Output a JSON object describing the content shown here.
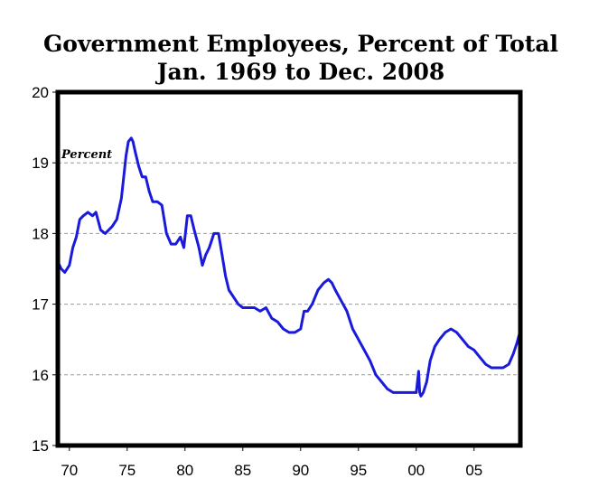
{
  "chart_data": {
    "type": "line",
    "title": "Government Employees, Percent of Total",
    "subtitle": "Jan. 1969 to Dec. 2008",
    "ylabel": "Percent",
    "xlabel": "",
    "xlim": [
      1969,
      2009
    ],
    "ylim": [
      15,
      20
    ],
    "y_ticks": [
      15,
      16,
      17,
      18,
      19,
      20
    ],
    "y_tick_labels": [
      "15",
      "16",
      "17",
      "18",
      "19",
      "20"
    ],
    "x_ticks": [
      1970,
      1975,
      1980,
      1985,
      1990,
      1995,
      2000,
      2005
    ],
    "x_tick_labels": [
      "70",
      "75",
      "80",
      "85",
      "90",
      "95",
      "00",
      "05"
    ],
    "grid": "horizontal dashed",
    "legend": "none",
    "colors": {
      "line": "#1a1adb",
      "grid": "#999999",
      "frame": "#000000",
      "background": "#ffffff"
    },
    "series": [
      {
        "x": [
          1969.0,
          1969.3,
          1969.6,
          1970.0,
          1970.3,
          1970.6,
          1970.9,
          1971.2,
          1971.6,
          1972.0,
          1972.3,
          1972.7,
          1973.1,
          1973.4,
          1973.7,
          1974.1,
          1974.5,
          1974.9,
          1975.1,
          1975.35,
          1975.5,
          1975.7,
          1976.0,
          1976.3,
          1976.6,
          1976.9,
          1977.2,
          1977.6,
          1978.0,
          1978.4,
          1978.8,
          1979.2,
          1979.6,
          1979.9,
          1980.2,
          1980.5,
          1980.8,
          1981.2,
          1981.5,
          1981.8,
          1982.1,
          1982.5,
          1982.9,
          1983.2,
          1983.5,
          1983.8,
          1984.2,
          1984.6,
          1985.0,
          1985.5,
          1986.0,
          1986.5,
          1987.0,
          1987.5,
          1988.0,
          1988.5,
          1989.0,
          1989.5,
          1990.0,
          1990.3,
          1990.6,
          1991.0,
          1991.5,
          1992.0,
          1992.4,
          1992.7,
          1993.0,
          1993.5,
          1994.0,
          1994.5,
          1995.0,
          1995.5,
          1996.0,
          1996.5,
          1997.0,
          1997.5,
          1998.0,
          1998.5,
          1999.0,
          1999.5,
          2000.0,
          2000.2,
          2000.3,
          2000.4,
          2000.6,
          2000.9,
          2001.2,
          2001.6,
          2002.0,
          2002.5,
          2003.0,
          2003.5,
          2004.0,
          2004.5,
          2005.0,
          2005.5,
          2006.0,
          2006.5,
          2007.0,
          2007.5,
          2008.0,
          2008.4,
          2008.7,
          2008.95
        ],
        "y": [
          17.6,
          17.5,
          17.45,
          17.55,
          17.8,
          17.95,
          18.2,
          18.25,
          18.3,
          18.25,
          18.3,
          18.05,
          18.0,
          18.05,
          18.1,
          18.2,
          18.5,
          19.1,
          19.3,
          19.35,
          19.3,
          19.15,
          18.95,
          18.8,
          18.8,
          18.6,
          18.45,
          18.45,
          18.4,
          18.0,
          17.85,
          17.85,
          17.95,
          17.8,
          18.25,
          18.25,
          18.05,
          17.8,
          17.55,
          17.7,
          17.8,
          18.0,
          18.0,
          17.7,
          17.4,
          17.2,
          17.1,
          17.0,
          16.95,
          16.95,
          16.95,
          16.9,
          16.95,
          16.8,
          16.75,
          16.65,
          16.6,
          16.6,
          16.65,
          16.9,
          16.9,
          17.0,
          17.2,
          17.3,
          17.35,
          17.3,
          17.2,
          17.05,
          16.9,
          16.65,
          16.5,
          16.35,
          16.2,
          16.0,
          15.9,
          15.8,
          15.75,
          15.75,
          15.75,
          15.75,
          15.75,
          16.05,
          15.75,
          15.7,
          15.75,
          15.9,
          16.2,
          16.4,
          16.5,
          16.6,
          16.65,
          16.6,
          16.5,
          16.4,
          16.35,
          16.25,
          16.15,
          16.1,
          16.1,
          16.1,
          16.15,
          16.3,
          16.45,
          16.6
        ]
      }
    ]
  }
}
